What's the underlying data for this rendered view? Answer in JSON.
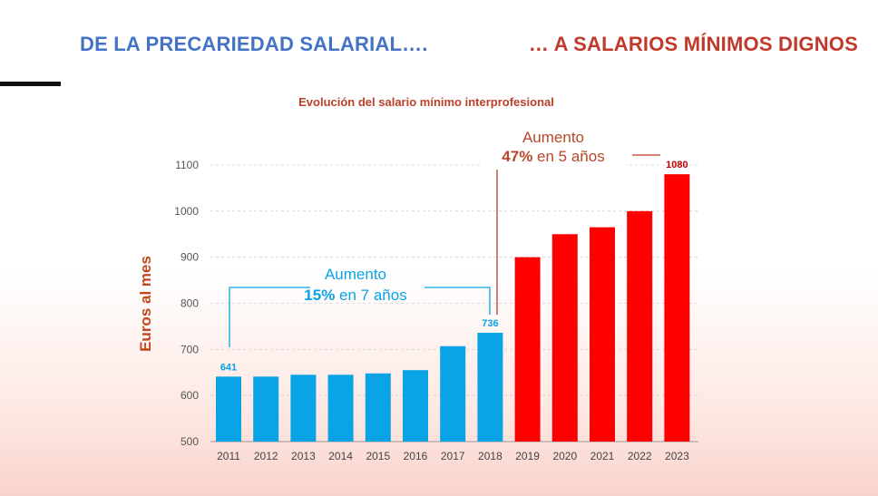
{
  "header": {
    "left_title": "DE  LA PRECARIEDAD SALARIAL….",
    "right_title": "… A SALARIOS MÍNIMOS DIGNOS"
  },
  "chart_data": {
    "type": "bar",
    "title": "Evolución del salario mínimo interprofesional",
    "ylabel": "Euros al mes",
    "xlabel": "",
    "ylim": [
      500,
      1100
    ],
    "yticks": [
      500,
      600,
      700,
      800,
      900,
      1000,
      1100
    ],
    "grid": true,
    "categories": [
      "2011",
      "2012",
      "2013",
      "2014",
      "2015",
      "2016",
      "2017",
      "2018",
      "2019",
      "2020",
      "2021",
      "2022",
      "2023"
    ],
    "values": [
      641,
      641,
      645,
      645,
      648,
      655,
      707,
      736,
      900,
      950,
      965,
      1000,
      1080
    ],
    "bar_colors": [
      "#0aa3e6",
      "#0aa3e6",
      "#0aa3e6",
      "#0aa3e6",
      "#0aa3e6",
      "#0aa3e6",
      "#0aa3e6",
      "#0aa3e6",
      "#ff0000",
      "#ff0000",
      "#ff0000",
      "#ff0000",
      "#ff0000"
    ],
    "data_labels": [
      {
        "index": 0,
        "text": "641",
        "color": "#0aa3e6"
      },
      {
        "index": 7,
        "text": "736",
        "color": "#0aa3e6"
      },
      {
        "index": 12,
        "text": "1080",
        "color": "#c00000"
      }
    ],
    "annotations": [
      {
        "line1": "Aumento",
        "line2_bold": "15%",
        "line2_rest": " en 7 años",
        "color": "#0aa3e6"
      },
      {
        "line1": "Aumento",
        "line2_bold": "47%",
        "line2_rest": " en 5 años",
        "color": "#b5472a"
      }
    ]
  }
}
